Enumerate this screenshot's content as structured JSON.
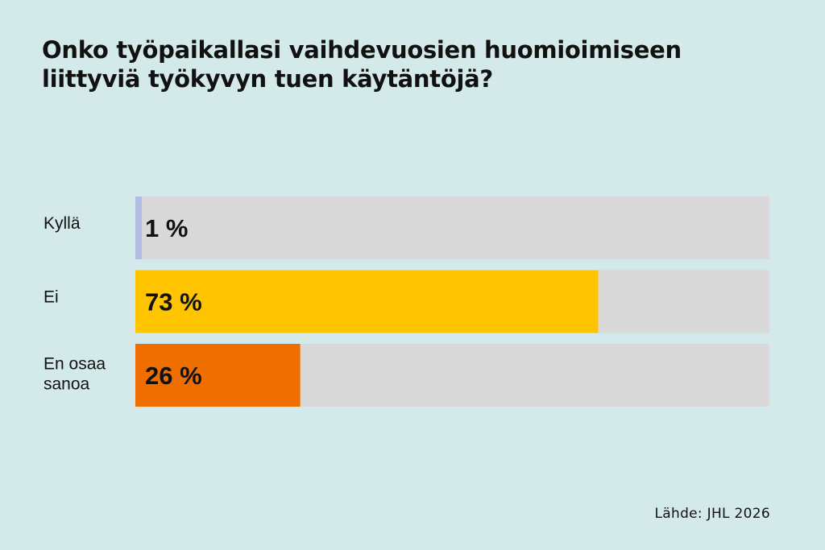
{
  "chart_data": {
    "type": "bar",
    "orientation": "horizontal",
    "title_lines": [
      "Onko työpaikallasi vaihdevuosien huomioimiseen",
      "liittyviä työkyvyn tuen käytäntöjä?"
    ],
    "categories": [
      {
        "label_lines": [
          "Kyllä"
        ]
      },
      {
        "label_lines": [
          "Ei"
        ]
      },
      {
        "label_lines": [
          "En osaa",
          "sanoa"
        ]
      }
    ],
    "values": [
      1,
      73,
      26
    ],
    "value_labels": [
      "1 %",
      "73 %",
      "26 %"
    ],
    "unit": "%",
    "xlim": [
      0,
      100
    ],
    "colors": [
      "#b3bde3",
      "#ffc400",
      "#ee6e00"
    ],
    "track_color": "#d9d9d9",
    "grid": false,
    "legend": "none",
    "source": "Lähde: JHL 2026"
  }
}
